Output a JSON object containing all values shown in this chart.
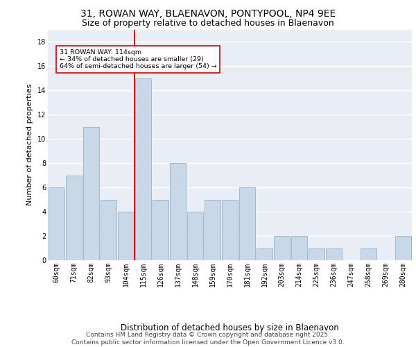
{
  "title_line1": "31, ROWAN WAY, BLAENAVON, PONTYPOOL, NP4 9EE",
  "title_line2": "Size of property relative to detached houses in Blaenavon",
  "categories": [
    "60sqm",
    "71sqm",
    "82sqm",
    "93sqm",
    "104sqm",
    "115sqm",
    "126sqm",
    "137sqm",
    "148sqm",
    "159sqm",
    "170sqm",
    "181sqm",
    "192sqm",
    "203sqm",
    "214sqm",
    "225sqm",
    "236sqm",
    "247sqm",
    "258sqm",
    "269sqm",
    "280sqm"
  ],
  "values": [
    6,
    7,
    11,
    5,
    4,
    15,
    5,
    8,
    4,
    5,
    5,
    6,
    1,
    2,
    2,
    1,
    1,
    0,
    1,
    0,
    2
  ],
  "bar_color": "#c8d8e8",
  "bar_edgecolor": "#a0b8d0",
  "highlight_index": 5,
  "highlight_line_color": "#cc0000",
  "xlabel": "Distribution of detached houses by size in Blaenavon",
  "ylabel": "Number of detached properties",
  "ylim": [
    0,
    19
  ],
  "yticks": [
    0,
    2,
    4,
    6,
    8,
    10,
    12,
    14,
    16,
    18
  ],
  "annotation_text": "31 ROWAN WAY: 114sqm\n← 34% of detached houses are smaller (29)\n64% of semi-detached houses are larger (54) →",
  "annotation_box_edgecolor": "#cc0000",
  "annotation_box_facecolor": "#ffffff",
  "footer_line1": "Contains HM Land Registry data © Crown copyright and database right 2025.",
  "footer_line2": "Contains public sector information licensed under the Open Government Licence v3.0.",
  "background_color": "#e8eef4",
  "grid_color": "#ffffff",
  "title_fontsize": 10,
  "subtitle_fontsize": 9,
  "xlabel_fontsize": 8.5,
  "ylabel_fontsize": 8,
  "tick_fontsize": 7,
  "footer_fontsize": 6.5
}
